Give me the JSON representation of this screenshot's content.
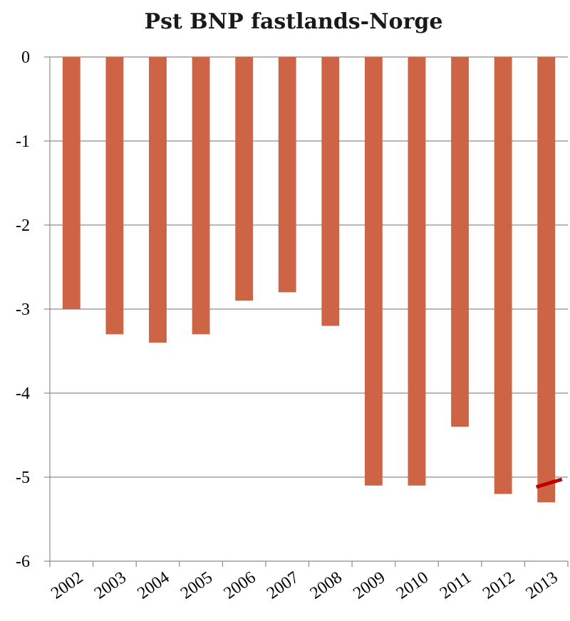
{
  "chart_data": {
    "type": "bar",
    "title": "Pst BNP fastlands-Norge",
    "xlabel": "",
    "ylabel": "",
    "categories": [
      "2002",
      "2003",
      "2004",
      "2005",
      "2006",
      "2007",
      "2008",
      "2009",
      "2010",
      "2011",
      "2012",
      "2013"
    ],
    "values": [
      -3.0,
      -3.3,
      -3.4,
      -3.3,
      -2.9,
      -2.8,
      -3.2,
      -5.1,
      -5.1,
      -4.4,
      -5.2,
      -5.3
    ],
    "ylim": [
      -6,
      0
    ],
    "yticks": [
      0,
      -1,
      -2,
      -3,
      -4,
      -5,
      -6
    ],
    "grid": true,
    "legend": "none",
    "bar_color": "#CD6446",
    "marker_color": "#C00000"
  }
}
